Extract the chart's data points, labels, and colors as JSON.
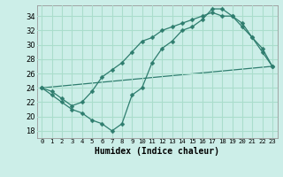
{
  "title": "",
  "xlabel": "Humidex (Indice chaleur)",
  "bg_color": "#cceee8",
  "grid_color": "#aaddcc",
  "line_color": "#2e7d6e",
  "xlim": [
    -0.5,
    23.5
  ],
  "ylim": [
    17.0,
    35.5
  ],
  "yticks": [
    18,
    20,
    22,
    24,
    26,
    28,
    30,
    32,
    34
  ],
  "xticks": [
    0,
    1,
    2,
    3,
    4,
    5,
    6,
    7,
    8,
    9,
    10,
    11,
    12,
    13,
    14,
    15,
    16,
    17,
    18,
    19,
    20,
    21,
    22,
    23
  ],
  "xtick_labels": [
    "0",
    "1",
    "2",
    "3",
    "4",
    "5",
    "6",
    "7",
    "8",
    "9",
    "10",
    "11",
    "12",
    "13",
    "14",
    "15",
    "16",
    "17",
    "18",
    "19",
    "20",
    "21",
    "22",
    "23"
  ],
  "line1_x": [
    0,
    1,
    2,
    3,
    4,
    5,
    6,
    7,
    8,
    9,
    10,
    11,
    12,
    13,
    14,
    15,
    16,
    17,
    18,
    19,
    20,
    21,
    22,
    23
  ],
  "line1_y": [
    24.0,
    23.0,
    22.0,
    21.0,
    20.5,
    19.5,
    19.0,
    18.0,
    19.0,
    23.0,
    24.0,
    27.5,
    29.5,
    30.5,
    32.0,
    32.5,
    33.5,
    35.0,
    35.0,
    34.0,
    32.5,
    31.0,
    29.0,
    27.0
  ],
  "line2_x": [
    0,
    23
  ],
  "line2_y": [
    24.0,
    27.0
  ],
  "line3_x": [
    0,
    1,
    2,
    3,
    4,
    5,
    6,
    7,
    8,
    9,
    10,
    11,
    12,
    13,
    14,
    15,
    16,
    17,
    18,
    19,
    20,
    21,
    22,
    23
  ],
  "line3_y": [
    24.0,
    23.5,
    22.5,
    21.5,
    22.0,
    23.5,
    25.5,
    26.5,
    27.5,
    29.0,
    30.5,
    31.0,
    32.0,
    32.5,
    33.0,
    33.5,
    34.0,
    34.5,
    34.0,
    34.0,
    33.0,
    31.0,
    29.5,
    27.0
  ]
}
